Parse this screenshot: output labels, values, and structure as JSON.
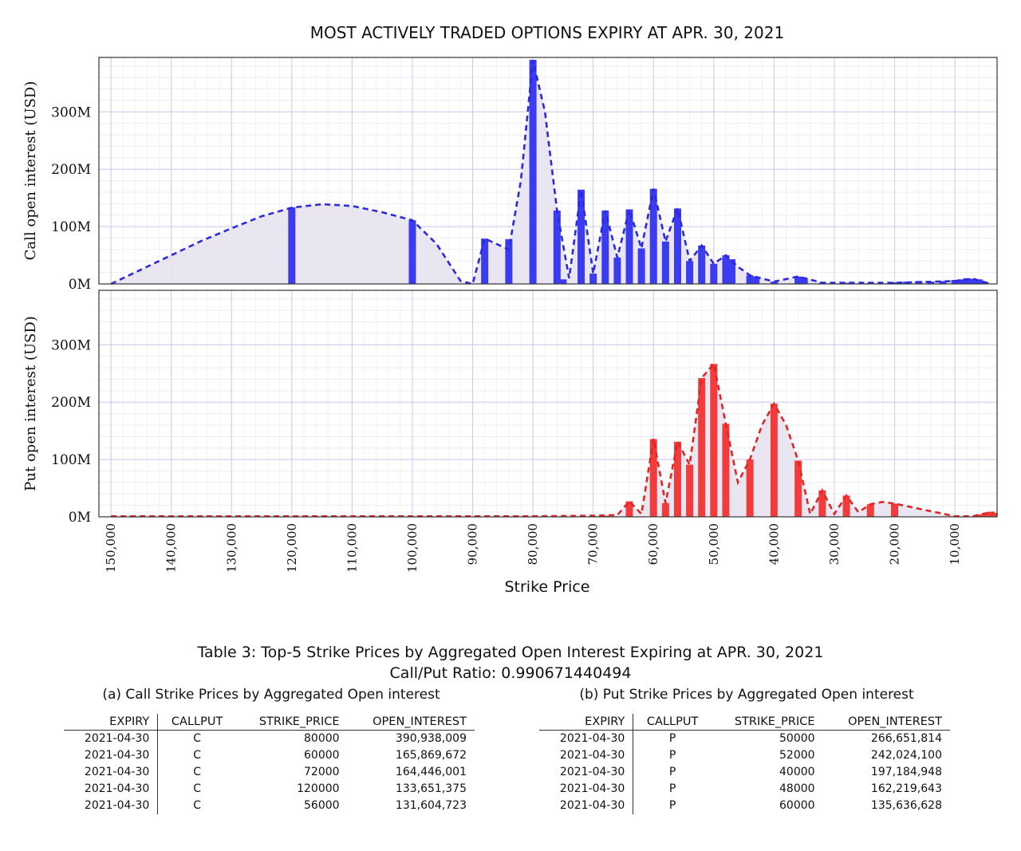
{
  "chart_data": {
    "type": "bar",
    "title": "MOST ACTIVELY TRADED OPTIONS EXPIRY AT APR. 30, 2021",
    "xlabel": "Strike Price",
    "x_ticks": [
      "150,000",
      "140,000",
      "130,000",
      "120,000",
      "110,000",
      "100,000",
      "90,000",
      "80,000",
      "70,000",
      "60,000",
      "50,000",
      "40,000",
      "30,000",
      "20,000",
      "10,000"
    ],
    "x_tick_values": [
      150000,
      140000,
      130000,
      120000,
      110000,
      100000,
      90000,
      80000,
      70000,
      60000,
      50000,
      40000,
      30000,
      20000,
      10000
    ],
    "x_reversed": true,
    "xlim": [
      152000,
      3000
    ],
    "grid": true,
    "panels": [
      {
        "name": "call",
        "ylabel": "Call open interest (USD)",
        "ylim": [
          0,
          395
        ],
        "unit": "M",
        "y_ticks": [
          "0M",
          "100M",
          "200M",
          "300M"
        ],
        "y_tick_values": [
          0,
          100,
          200,
          300
        ],
        "color": "#3b3bf0",
        "line_color": "#2b2bdc",
        "fill_color": "#e8e4f0",
        "bars": [
          {
            "x": 120000,
            "y": 133.7
          },
          {
            "x": 100000,
            "y": 111
          },
          {
            "x": 88000,
            "y": 79
          },
          {
            "x": 84000,
            "y": 78
          },
          {
            "x": 80000,
            "y": 390.9
          },
          {
            "x": 76000,
            "y": 128
          },
          {
            "x": 75000,
            "y": 8
          },
          {
            "x": 72000,
            "y": 164.4
          },
          {
            "x": 70000,
            "y": 18
          },
          {
            "x": 68000,
            "y": 128
          },
          {
            "x": 66000,
            "y": 46
          },
          {
            "x": 64000,
            "y": 130
          },
          {
            "x": 62000,
            "y": 62
          },
          {
            "x": 60000,
            "y": 165.9
          },
          {
            "x": 58000,
            "y": 74
          },
          {
            "x": 56000,
            "y": 131.6
          },
          {
            "x": 54000,
            "y": 40
          },
          {
            "x": 52000,
            "y": 67
          },
          {
            "x": 50000,
            "y": 35
          },
          {
            "x": 48000,
            "y": 50
          },
          {
            "x": 47000,
            "y": 43
          },
          {
            "x": 44000,
            "y": 15
          },
          {
            "x": 43000,
            "y": 13
          },
          {
            "x": 40000,
            "y": 4
          },
          {
            "x": 36000,
            "y": 13
          },
          {
            "x": 35000,
            "y": 10
          },
          {
            "x": 32000,
            "y": 2
          },
          {
            "x": 28000,
            "y": 2
          },
          {
            "x": 24000,
            "y": 2
          },
          {
            "x": 20000,
            "y": 3
          },
          {
            "x": 18000,
            "y": 4
          },
          {
            "x": 16000,
            "y": 5
          },
          {
            "x": 14000,
            "y": 4
          },
          {
            "x": 12000,
            "y": 5
          },
          {
            "x": 10000,
            "y": 7
          },
          {
            "x": 9000,
            "y": 8
          },
          {
            "x": 8000,
            "y": 10
          },
          {
            "x": 7000,
            "y": 9
          },
          {
            "x": 6000,
            "y": 8
          },
          {
            "x": 5000,
            "y": 3
          }
        ],
        "curve": [
          {
            "x": 150000,
            "y": 0
          },
          {
            "x": 145000,
            "y": 25
          },
          {
            "x": 140000,
            "y": 50
          },
          {
            "x": 135000,
            "y": 75
          },
          {
            "x": 130000,
            "y": 97
          },
          {
            "x": 125000,
            "y": 118
          },
          {
            "x": 120000,
            "y": 133
          },
          {
            "x": 115000,
            "y": 139
          },
          {
            "x": 110000,
            "y": 136
          },
          {
            "x": 105000,
            "y": 125
          },
          {
            "x": 100000,
            "y": 111
          },
          {
            "x": 96000,
            "y": 70
          },
          {
            "x": 92000,
            "y": 5
          },
          {
            "x": 90000,
            "y": 0
          },
          {
            "x": 88000,
            "y": 79
          },
          {
            "x": 84000,
            "y": 60
          },
          {
            "x": 82000,
            "y": 180
          },
          {
            "x": 80000,
            "y": 390
          },
          {
            "x": 78000,
            "y": 300
          },
          {
            "x": 76000,
            "y": 128
          },
          {
            "x": 74000,
            "y": 10
          },
          {
            "x": 72000,
            "y": 164
          },
          {
            "x": 70000,
            "y": 18
          },
          {
            "x": 68000,
            "y": 128
          },
          {
            "x": 66000,
            "y": 46
          },
          {
            "x": 64000,
            "y": 130
          },
          {
            "x": 62000,
            "y": 62
          },
          {
            "x": 60000,
            "y": 166
          },
          {
            "x": 58000,
            "y": 74
          },
          {
            "x": 56000,
            "y": 132
          },
          {
            "x": 54000,
            "y": 40
          },
          {
            "x": 52000,
            "y": 67
          },
          {
            "x": 50000,
            "y": 35
          },
          {
            "x": 48000,
            "y": 50
          },
          {
            "x": 46000,
            "y": 30
          },
          {
            "x": 44000,
            "y": 15
          },
          {
            "x": 40000,
            "y": 4
          },
          {
            "x": 36000,
            "y": 13
          },
          {
            "x": 32000,
            "y": 2
          },
          {
            "x": 20000,
            "y": 2
          },
          {
            "x": 10000,
            "y": 5
          },
          {
            "x": 7000,
            "y": 9
          },
          {
            "x": 5000,
            "y": 3
          },
          {
            "x": 4000,
            "y": 0
          }
        ]
      },
      {
        "name": "put",
        "ylabel": "Put open interest (USD)",
        "ylim": [
          0,
          395
        ],
        "unit": "M",
        "y_ticks": [
          "0M",
          "100M",
          "200M",
          "300M"
        ],
        "y_tick_values": [
          0,
          100,
          200,
          300
        ],
        "color": "#f23c3c",
        "line_color": "#e02525",
        "fill_color": "#e8e4f0",
        "bars": [
          {
            "x": 68000,
            "y": 2
          },
          {
            "x": 64000,
            "y": 27
          },
          {
            "x": 60000,
            "y": 135.6
          },
          {
            "x": 58000,
            "y": 24
          },
          {
            "x": 56000,
            "y": 131
          },
          {
            "x": 54000,
            "y": 91
          },
          {
            "x": 52000,
            "y": 242
          },
          {
            "x": 50000,
            "y": 266.7
          },
          {
            "x": 48000,
            "y": 162.2
          },
          {
            "x": 44000,
            "y": 100
          },
          {
            "x": 40000,
            "y": 197.2
          },
          {
            "x": 36000,
            "y": 98
          },
          {
            "x": 32000,
            "y": 46
          },
          {
            "x": 28000,
            "y": 37
          },
          {
            "x": 24000,
            "y": 22
          },
          {
            "x": 20000,
            "y": 23
          },
          {
            "x": 10000,
            "y": 1
          },
          {
            "x": 6000,
            "y": 4
          },
          {
            "x": 5000,
            "y": 6
          },
          {
            "x": 4000,
            "y": 9
          },
          {
            "x": 3500,
            "y": 7
          }
        ],
        "curve": [
          {
            "x": 150000,
            "y": 1
          },
          {
            "x": 140000,
            "y": 1
          },
          {
            "x": 120000,
            "y": 1
          },
          {
            "x": 100000,
            "y": 1
          },
          {
            "x": 80000,
            "y": 1
          },
          {
            "x": 70000,
            "y": 2
          },
          {
            "x": 66000,
            "y": 3
          },
          {
            "x": 64000,
            "y": 27
          },
          {
            "x": 62000,
            "y": 5
          },
          {
            "x": 60000,
            "y": 136
          },
          {
            "x": 58000,
            "y": 24
          },
          {
            "x": 56000,
            "y": 131
          },
          {
            "x": 54000,
            "y": 91
          },
          {
            "x": 52000,
            "y": 242
          },
          {
            "x": 50000,
            "y": 267
          },
          {
            "x": 48000,
            "y": 162
          },
          {
            "x": 46000,
            "y": 60
          },
          {
            "x": 44000,
            "y": 100
          },
          {
            "x": 42000,
            "y": 160
          },
          {
            "x": 40000,
            "y": 197
          },
          {
            "x": 38000,
            "y": 160
          },
          {
            "x": 36000,
            "y": 98
          },
          {
            "x": 34000,
            "y": 5
          },
          {
            "x": 32000,
            "y": 46
          },
          {
            "x": 30000,
            "y": 5
          },
          {
            "x": 28000,
            "y": 37
          },
          {
            "x": 26000,
            "y": 8
          },
          {
            "x": 24000,
            "y": 22
          },
          {
            "x": 22000,
            "y": 26
          },
          {
            "x": 20000,
            "y": 23
          },
          {
            "x": 15000,
            "y": 12
          },
          {
            "x": 10000,
            "y": 1
          },
          {
            "x": 7000,
            "y": 1
          },
          {
            "x": 5000,
            "y": 6
          },
          {
            "x": 3500,
            "y": 7
          }
        ]
      }
    ]
  },
  "tables": {
    "caption_line1": "Table 3: Top-5 Strike Prices by Aggregated Open Interest Expiring at APR. 30, 2021",
    "caption_line2": "Call/Put Ratio: 0.990671440494",
    "headers": [
      "EXPIRY",
      "CALLPUT",
      "STRIKE_PRICE",
      "OPEN_INTEREST"
    ],
    "call": {
      "caption": "(a) Call Strike Prices by Aggregated Open interest",
      "rows": [
        [
          "2021-04-30",
          "C",
          "80000",
          "390,938,009"
        ],
        [
          "2021-04-30",
          "C",
          "60000",
          "165,869,672"
        ],
        [
          "2021-04-30",
          "C",
          "72000",
          "164,446,001"
        ],
        [
          "2021-04-30",
          "C",
          "120000",
          "133,651,375"
        ],
        [
          "2021-04-30",
          "C",
          "56000",
          "131,604,723"
        ]
      ]
    },
    "put": {
      "caption": "(b) Put Strike Prices by Aggregated Open interest",
      "rows": [
        [
          "2021-04-30",
          "P",
          "50000",
          "266,651,814"
        ],
        [
          "2021-04-30",
          "P",
          "52000",
          "242,024,100"
        ],
        [
          "2021-04-30",
          "P",
          "40000",
          "197,184,948"
        ],
        [
          "2021-04-30",
          "P",
          "48000",
          "162,219,643"
        ],
        [
          "2021-04-30",
          "P",
          "60000",
          "135,636,628"
        ]
      ]
    }
  }
}
